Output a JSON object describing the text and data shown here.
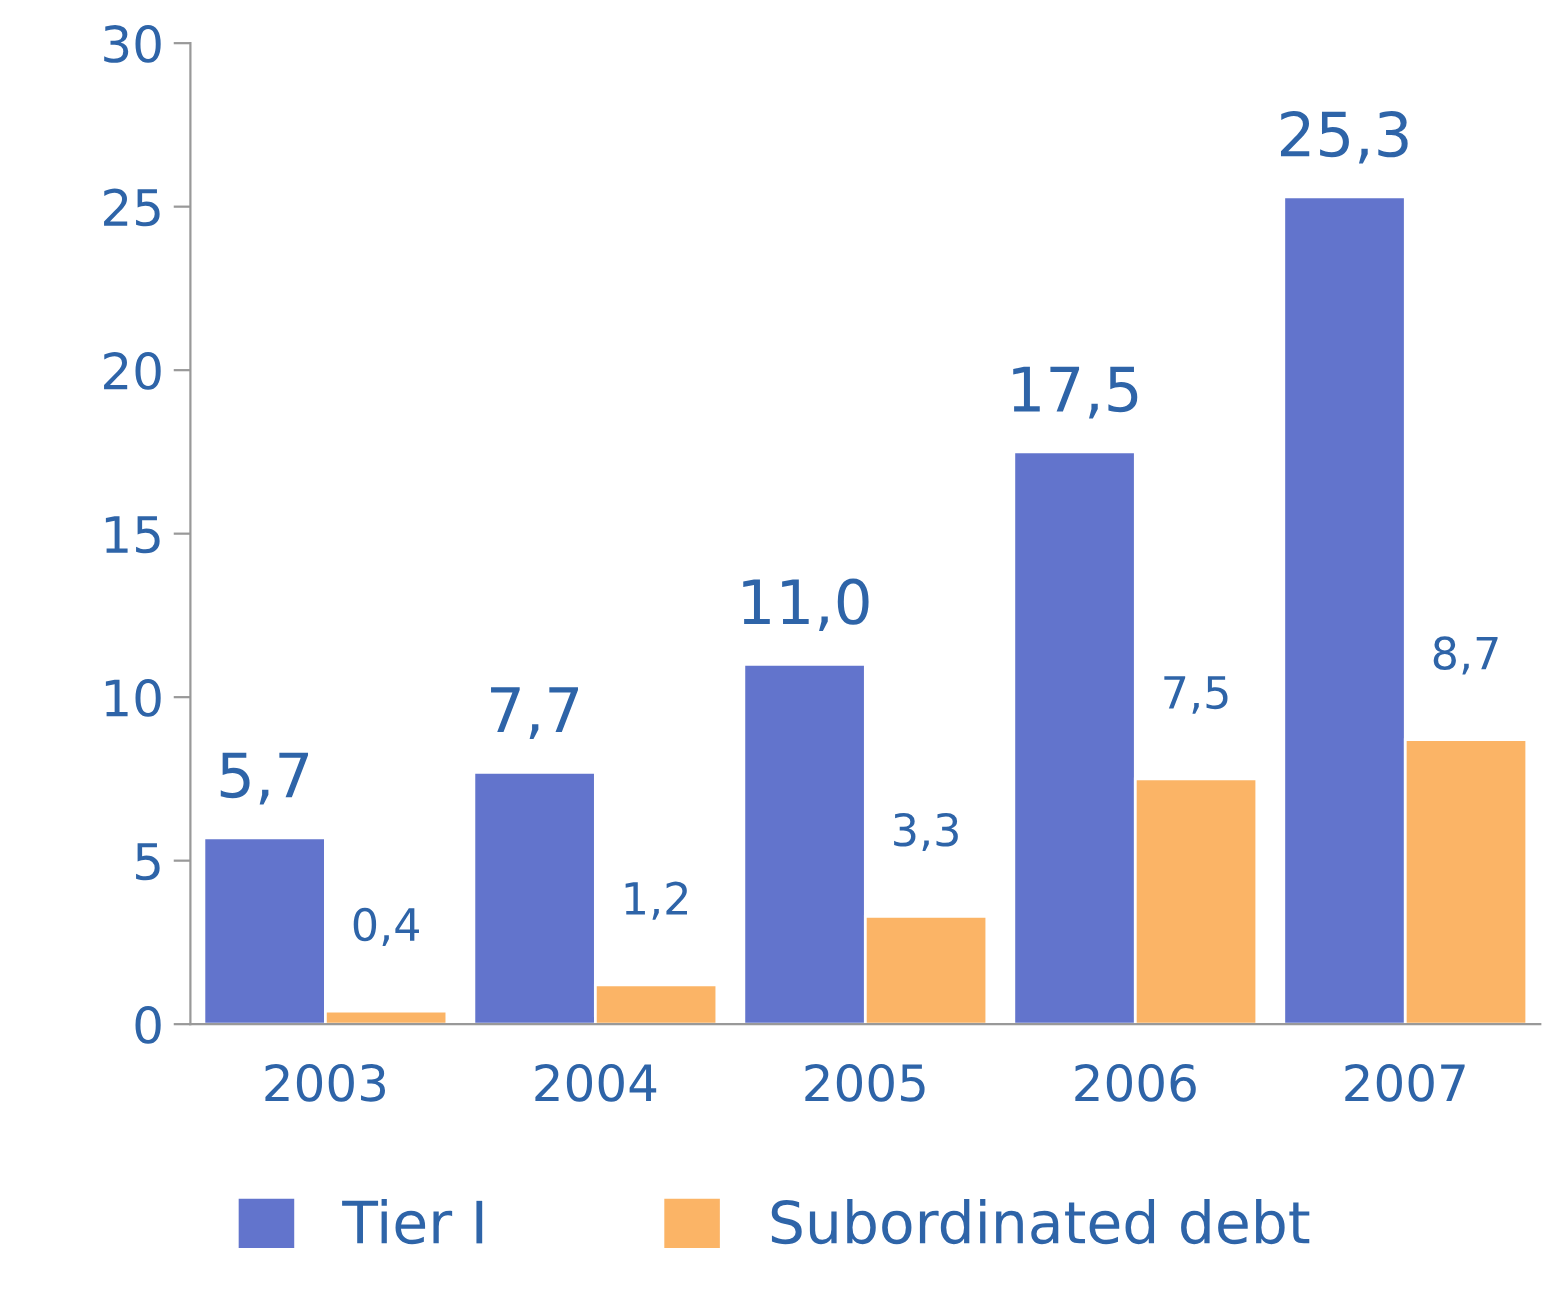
{
  "chart_data": {
    "type": "bar",
    "categories": [
      "2003",
      "2004",
      "2005",
      "2006",
      "2007"
    ],
    "series": [
      {
        "name": "Tier I",
        "color": "#6274cc",
        "values": [
          5.7,
          7.7,
          11.0,
          17.5,
          25.3
        ],
        "value_labels": [
          "5,7",
          "7,7",
          "11,0",
          "17,5",
          "25,3"
        ]
      },
      {
        "name": "Subordinated debt",
        "color": "#fbb466",
        "values": [
          0.4,
          1.2,
          3.3,
          7.5,
          8.7
        ],
        "value_labels": [
          "0,4",
          "1,2",
          "3,3",
          "7,5",
          "8,7"
        ]
      }
    ],
    "ylim": [
      0,
      30
    ],
    "yticks": [
      0,
      5,
      10,
      15,
      20,
      25,
      30
    ],
    "grid": false,
    "legend": "bottom"
  }
}
